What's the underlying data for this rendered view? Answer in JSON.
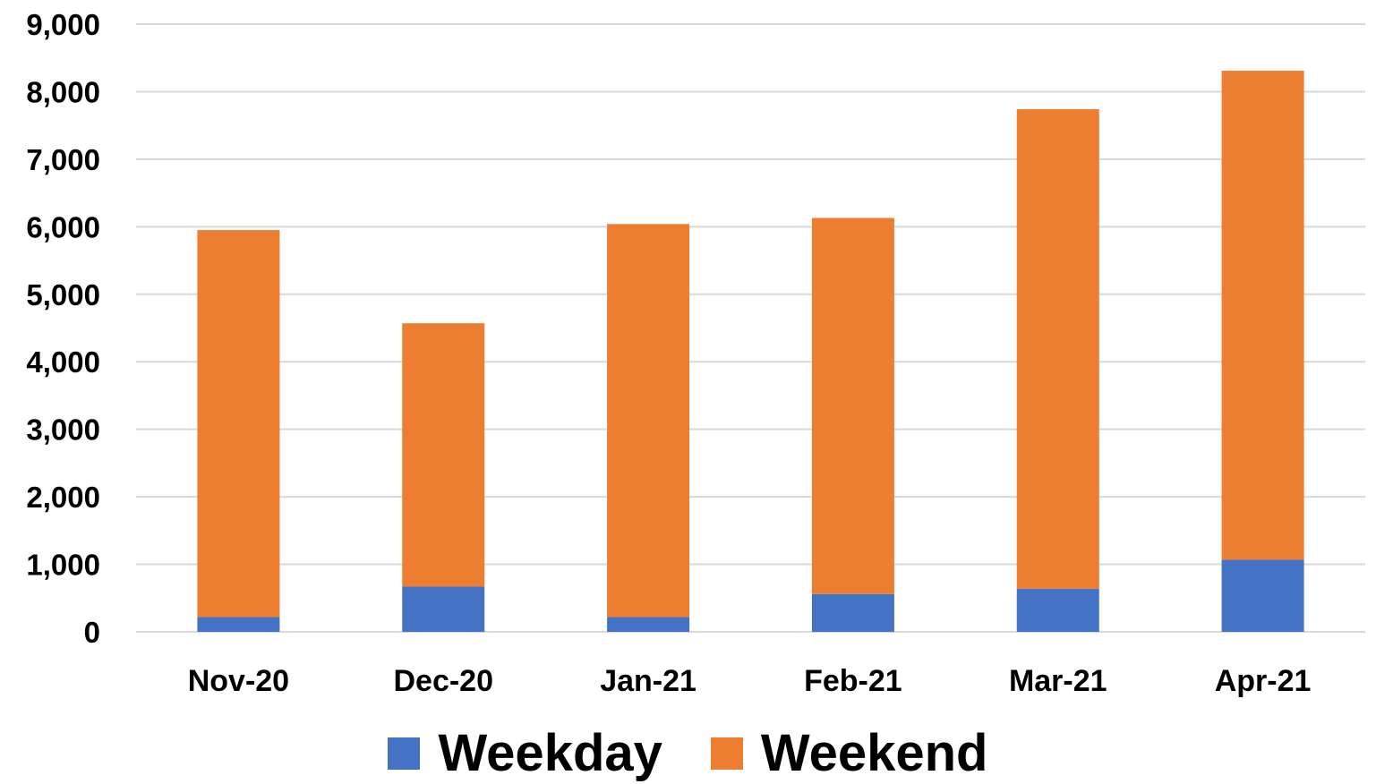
{
  "chart_data": {
    "type": "bar",
    "stacked": true,
    "categories": [
      "Nov-20",
      "Dec-20",
      "Jan-21",
      "Feb-21",
      "Mar-21",
      "Apr-21"
    ],
    "series": [
      {
        "name": "Weekday",
        "color": "#4472C4",
        "values": [
          220,
          670,
          220,
          560,
          640,
          1070
        ]
      },
      {
        "name": "Weekend",
        "color": "#ED7D31",
        "values": [
          5730,
          3900,
          5820,
          5570,
          7100,
          7240
        ]
      }
    ],
    "yticks": [
      "0",
      "1,000",
      "2,000",
      "3,000",
      "4,000",
      "5,000",
      "6,000",
      "7,000",
      "8,000",
      "9,000"
    ],
    "ylim": [
      0,
      9000
    ],
    "grid": true,
    "legend_position": "bottom"
  }
}
